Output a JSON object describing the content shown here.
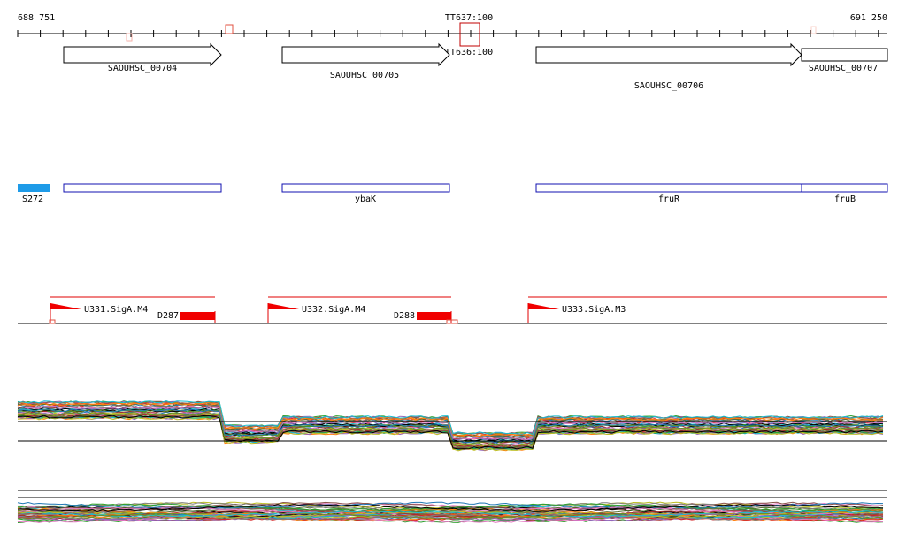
{
  "ruler": {
    "start": "688 751",
    "end": "691 250"
  },
  "terminators": [
    {
      "label": "TT637:100"
    },
    {
      "label": "TT636:100"
    }
  ],
  "genes": [
    {
      "label": "SAOUHSC_00704"
    },
    {
      "label": "SAOUHSC_00705"
    },
    {
      "label": "SAOUHSC_00706"
    },
    {
      "label": "SAOUHSC_00707"
    }
  ],
  "operons": [
    {
      "label": "S272"
    },
    {
      "label": "ybaK"
    },
    {
      "label": "fruR"
    },
    {
      "label": "fruB"
    }
  ],
  "promoters": [
    {
      "label": "U331.SigA.M4"
    },
    {
      "label": "U332.SigA.M4"
    },
    {
      "label": "U333.SigA.M3"
    }
  ],
  "downstream": [
    {
      "label": "D287"
    },
    {
      "label": "D288"
    }
  ]
}
